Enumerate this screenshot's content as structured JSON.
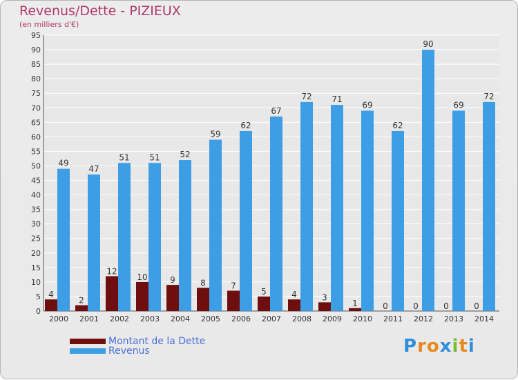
{
  "header": {
    "title": "Revenus/Dette - PIZIEUX",
    "subtitle": "(en milliers d'€)"
  },
  "legend": {
    "items": [
      {
        "label": "Montant de la Dette",
        "color": "#6e0e0e"
      },
      {
        "label": "Revenus",
        "color": "#3d9ee6"
      }
    ]
  },
  "logo": {
    "letters": [
      "P",
      "r",
      "o",
      "x",
      "i",
      "t",
      "i"
    ],
    "colors": [
      "#2f8fd8",
      "#e8891e",
      "#e8891e",
      "#2f8fd8",
      "#7dbb2a",
      "#e8891e",
      "#2f8fd8"
    ]
  },
  "chart_data": {
    "type": "bar",
    "categories": [
      "2000",
      "2001",
      "2002",
      "2003",
      "2004",
      "2005",
      "2006",
      "2007",
      "2008",
      "2009",
      "2010",
      "2011",
      "2012",
      "2013",
      "2014"
    ],
    "series": [
      {
        "name": "Montant de la Dette",
        "color": "#6e0e0e",
        "values": [
          4,
          2,
          12,
          10,
          9,
          8,
          7,
          5,
          4,
          3,
          1,
          0,
          0,
          0,
          0
        ]
      },
      {
        "name": "Revenus",
        "color": "#3d9ee6",
        "values": [
          49,
          47,
          51,
          51,
          52,
          59,
          62,
          67,
          72,
          71,
          69,
          62,
          90,
          69,
          72
        ]
      }
    ],
    "ylim": [
      0,
      95
    ],
    "yticks": [
      0,
      5,
      10,
      15,
      20,
      25,
      30,
      35,
      40,
      45,
      50,
      55,
      60,
      65,
      70,
      75,
      80,
      85,
      90,
      95
    ],
    "grid": true
  }
}
